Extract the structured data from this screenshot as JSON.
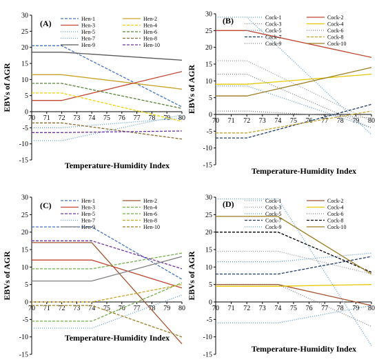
{
  "chart_data": [
    {
      "type": "line",
      "panel": "(A)",
      "xlabel": "Temperature-Humidity Index",
      "ylabel": "EBVs of AGR",
      "xlim": [
        70,
        80
      ],
      "ylim": [
        -15,
        30
      ],
      "x": [
        70,
        72,
        80
      ],
      "grid": false,
      "legend": "top, 2 columns",
      "series": [
        {
          "name": "Hen-1",
          "color": "#4472c4",
          "dash": "4,2",
          "values": [
            20.5,
            20.5,
            1.5
          ]
        },
        {
          "name": "Hen-2",
          "color": "#c9a227",
          "dash": "",
          "values": [
            11.5,
            11.5,
            7
          ]
        },
        {
          "name": "Hen-3",
          "color": "#c0442f",
          "dash": "",
          "values": [
            3.5,
            3.5,
            12.5
          ]
        },
        {
          "name": "Hen-4",
          "color": "#f0d000",
          "dash": "4,2",
          "values": [
            5.8,
            5.8,
            -3
          ]
        },
        {
          "name": "Hen-5",
          "color": "#5b9bd5",
          "dash": "1,2",
          "values": [
            -5,
            -5,
            -2
          ]
        },
        {
          "name": "Hen-6",
          "color": "#548235",
          "dash": "4,2",
          "values": [
            8.8,
            8.8,
            1
          ]
        },
        {
          "name": "Hen-7",
          "color": "#5b9bd5",
          "dash": "1,2",
          "values": [
            -9,
            -9,
            -1
          ]
        },
        {
          "name": "Hen-8",
          "color": "#8b6b2e",
          "dash": "4,2",
          "values": [
            -3.5,
            -3.5,
            -8.5
          ]
        },
        {
          "name": "Hen-9",
          "color": "#595959",
          "dash": "",
          "values": [
            18.5,
            18.5,
            16
          ]
        },
        {
          "name": "Hen-10",
          "color": "#7030a0",
          "dash": "4,2",
          "values": [
            -6.5,
            -6.5,
            -6
          ]
        }
      ]
    },
    {
      "type": "line",
      "panel": "(B)",
      "xlabel": "Temperature-Humidity Index",
      "ylabel": "EBVs of AGR",
      "xlim": [
        70,
        80
      ],
      "ylim": [
        -15,
        30
      ],
      "x": [
        70,
        72,
        80
      ],
      "grid": false,
      "legend": "top, 2 columns",
      "series": [
        {
          "name": "Cock-1",
          "color": "#5b9bd5",
          "dash": "1,2",
          "values": [
            29,
            29,
            -6
          ]
        },
        {
          "name": "Cock-2",
          "color": "#c0442f",
          "dash": "",
          "values": [
            25,
            25,
            17
          ]
        },
        {
          "name": "Cock-3",
          "color": "#999999",
          "dash": "1,2",
          "values": [
            16,
            16,
            -2
          ]
        },
        {
          "name": "Cock-4",
          "color": "#e6c700",
          "dash": "",
          "values": [
            9,
            9,
            12
          ]
        },
        {
          "name": "Cock-5",
          "color": "#5b9bd5",
          "dash": "1,2",
          "values": [
            8.5,
            8.5,
            -4
          ]
        },
        {
          "name": "Cock-6",
          "color": "#7f7f7f",
          "dash": "1,2",
          "values": [
            12,
            12,
            -4
          ]
        },
        {
          "name": "Cock-7",
          "color": "#1f3864",
          "dash": "4,2",
          "values": [
            -7,
            -7,
            3
          ]
        },
        {
          "name": "Cock-8",
          "color": "#c9a227",
          "dash": "4,2",
          "values": [
            -5.5,
            -5.5,
            1
          ]
        },
        {
          "name": "Cock-9",
          "color": "#7f7f7f",
          "dash": "1,2",
          "values": [
            1,
            1,
            -1
          ]
        },
        {
          "name": "Cock-10",
          "color": "#9c7a1e",
          "dash": "",
          "values": [
            5.5,
            5.5,
            14
          ]
        }
      ]
    },
    {
      "type": "line",
      "panel": "(C)",
      "xlabel": "Temperature-Humidity Index",
      "ylabel": "EBVs of AGR",
      "xlim": [
        70,
        80
      ],
      "ylim": [
        -15,
        30
      ],
      "x": [
        70,
        74,
        80
      ],
      "grid": false,
      "legend": "top, 2 columns",
      "series": [
        {
          "name": "Hen-1",
          "color": "#4472c4",
          "dash": "4,2",
          "values": [
            21.5,
            21.5,
            6.5
          ]
        },
        {
          "name": "Hen-2",
          "color": "#a0522d",
          "dash": "",
          "values": [
            17,
            17,
            -12
          ]
        },
        {
          "name": "Hen-3",
          "color": "#c0442f",
          "dash": "",
          "values": [
            12,
            12,
            4
          ]
        },
        {
          "name": "Hen-4",
          "color": "#70ad47",
          "dash": "4,2",
          "values": [
            9.5,
            9.5,
            14
          ]
        },
        {
          "name": "Hen-5",
          "color": "#7030a0",
          "dash": "4,2",
          "values": [
            17.5,
            17.5,
            9.5
          ]
        },
        {
          "name": "Hen-6",
          "color": "#70ad47",
          "dash": "4,2",
          "values": [
            -5.5,
            -5.5,
            5.5
          ]
        },
        {
          "name": "Hen-7",
          "color": "#5b9bd5",
          "dash": "1,2",
          "values": [
            -7.5,
            -7.5,
            2
          ]
        },
        {
          "name": "Hen-8",
          "color": "#c9a227",
          "dash": "4,2",
          "values": [
            0,
            0,
            5
          ]
        },
        {
          "name": "Hen-9",
          "color": "#7f7f7f",
          "dash": "",
          "values": [
            6,
            6,
            13
          ]
        },
        {
          "name": "Hen-10",
          "color": "#9c7a1e",
          "dash": "4,2",
          "values": [
            -1,
            -1,
            -10
          ]
        }
      ]
    },
    {
      "type": "line",
      "panel": "(D)",
      "xlabel": "Temperature-Humidity Index",
      "ylabel": "EBVs of AGR",
      "xlim": [
        70,
        80
      ],
      "ylim": [
        -15,
        30
      ],
      "x": [
        70,
        74,
        80
      ],
      "grid": false,
      "legend": "top, 2 columns",
      "series": [
        {
          "name": "Cock-1",
          "color": "#5b9bd5",
          "dash": "1,2",
          "values": [
            29.5,
            29.5,
            -12.5
          ]
        },
        {
          "name": "Cock-2",
          "color": "#a0522d",
          "dash": "",
          "values": [
            5,
            5,
            -1
          ]
        },
        {
          "name": "Cock-3",
          "color": "#999999",
          "dash": "1,2",
          "values": [
            14.5,
            14.5,
            8
          ]
        },
        {
          "name": "Cock-4",
          "color": "#e6c700",
          "dash": "",
          "values": [
            4.5,
            4.5,
            5
          ]
        },
        {
          "name": "Cock-5",
          "color": "#5b9bd5",
          "dash": "1,2",
          "values": [
            11.5,
            11.5,
            14
          ]
        },
        {
          "name": "Cock-6",
          "color": "#7f7f7f",
          "dash": "1,2",
          "values": [
            5,
            5,
            -7
          ]
        },
        {
          "name": "Cock-7",
          "color": "#1f3864",
          "dash": "4,2",
          "values": [
            8,
            8,
            13
          ]
        },
        {
          "name": "Cock-8",
          "color": "#000000",
          "dash": "4,2",
          "values": [
            20,
            20,
            8.5
          ]
        },
        {
          "name": "Cock-9",
          "color": "#5b9bd5",
          "dash": "1,2",
          "values": [
            -6,
            -6,
            -1
          ]
        },
        {
          "name": "Cock-10",
          "color": "#9c7a1e",
          "dash": "",
          "values": [
            24.5,
            24.5,
            8
          ]
        }
      ]
    }
  ]
}
